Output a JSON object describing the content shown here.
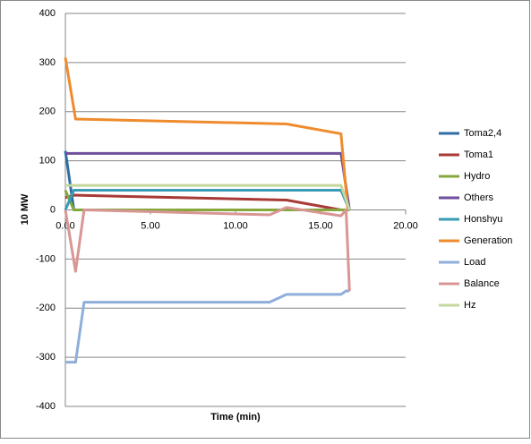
{
  "chart_data": {
    "type": "line",
    "x_label": "Time (min)",
    "y_label": "10 MW",
    "xlim": [
      0,
      20
    ],
    "ylim": [
      -400,
      400
    ],
    "xticks": [
      {
        "value": 0,
        "label": "0.00"
      },
      {
        "value": 5,
        "label": "5.00"
      },
      {
        "value": 10,
        "label": "10.00"
      },
      {
        "value": 15,
        "label": "15.00"
      },
      {
        "value": 20,
        "label": "20.00"
      }
    ],
    "yticks": [
      -400,
      -300,
      -200,
      -100,
      0,
      100,
      200,
      300,
      400
    ],
    "grid": true,
    "legend": "right",
    "series": [
      {
        "name": "Toma2,4",
        "color": "#2f6ea5",
        "x": [
          0,
          0.5,
          16.7
        ],
        "values": [
          120,
          0,
          0
        ]
      },
      {
        "name": "Toma1",
        "color": "#a83a36",
        "x": [
          0,
          0.5,
          13,
          16.2,
          16.7
        ],
        "values": [
          25,
          30,
          20,
          0,
          0
        ]
      },
      {
        "name": "Hydro",
        "color": "#86a73c",
        "x": [
          0,
          0.5,
          16.7
        ],
        "values": [
          40,
          0,
          0
        ]
      },
      {
        "name": "Others",
        "color": "#6f4f9c",
        "x": [
          0,
          16.2,
          16.7
        ],
        "values": [
          115,
          115,
          0
        ]
      },
      {
        "name": "Honshyu",
        "color": "#3a9bb5",
        "x": [
          0,
          0.5,
          16.2,
          16.7
        ],
        "values": [
          0,
          40,
          40,
          0
        ]
      },
      {
        "name": "Generation",
        "color": "#ef8b2c",
        "x": [
          0,
          0.6,
          13,
          16.2,
          16.6
        ],
        "values": [
          310,
          185,
          175,
          155,
          0
        ]
      },
      {
        "name": "Load",
        "color": "#8eaedb",
        "x": [
          0,
          0.6,
          1.1,
          12,
          13,
          16.2,
          16.5,
          16.7
        ],
        "values": [
          -310,
          -310,
          -188,
          -188,
          -172,
          -172,
          -165,
          -165
        ]
      },
      {
        "name": "Balance",
        "color": "#d89694",
        "x": [
          0,
          0.6,
          1.1,
          12,
          13,
          16.2,
          16.5,
          16.7
        ],
        "values": [
          0,
          -125,
          0,
          -10,
          5,
          -12,
          0,
          -165
        ]
      },
      {
        "name": "Hz",
        "color": "#c4d79c",
        "x": [
          0,
          1,
          16.2,
          16.7
        ],
        "values": [
          50,
          50,
          50,
          0
        ]
      }
    ]
  }
}
